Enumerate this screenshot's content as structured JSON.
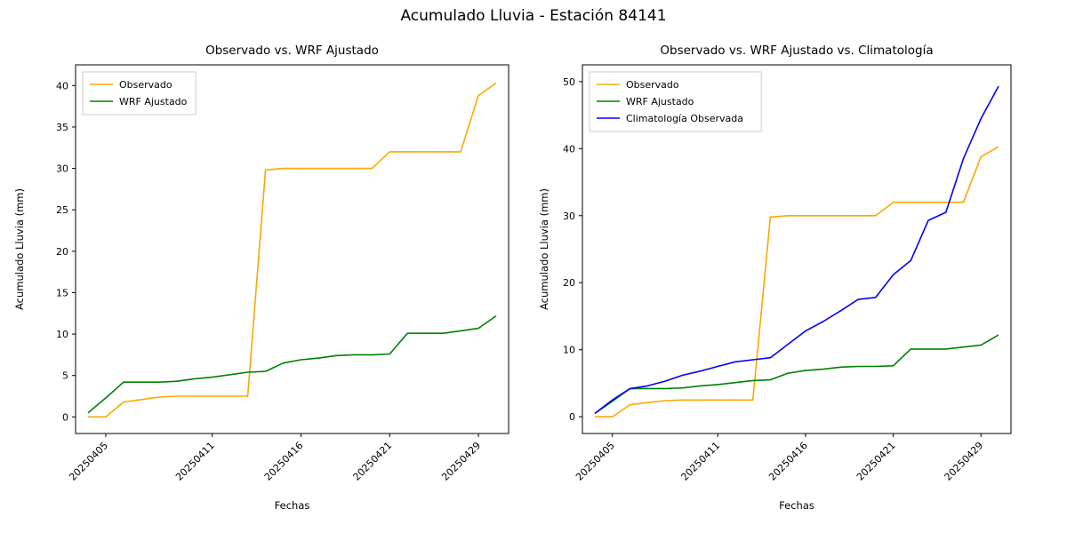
{
  "figure": {
    "title": "Acumulado Lluvia - Estación 84141"
  },
  "colors": {
    "observado": "#FFA500",
    "wrf": "#008000",
    "climatologia": "#0000FF",
    "spine": "#000000",
    "legend_border": "#cccccc"
  },
  "chart_data": [
    {
      "type": "line",
      "title": "Observado vs. WRF Ajustado",
      "xlabel": "Fechas",
      "ylabel": "Acumulado Lluvia (mm)",
      "x_categories": [
        "20250404",
        "20250405",
        "20250406",
        "20250407",
        "20250408",
        "20250409",
        "20250410",
        "20250411",
        "20250412",
        "20250413",
        "20250414",
        "20250415",
        "20250416",
        "20250417",
        "20250418",
        "20250419",
        "20250420",
        "20250421",
        "20250422",
        "20250423",
        "20250424",
        "20250428",
        "20250429",
        "20250430"
      ],
      "xtick_labels": [
        "20250405",
        "20250411",
        "20250416",
        "20250421",
        "20250429"
      ],
      "ytick_values": [
        0,
        5,
        10,
        15,
        20,
        25,
        30,
        35,
        40
      ],
      "ylim": [
        -2,
        42.5
      ],
      "grid": false,
      "legend_position": "upper left",
      "series": [
        {
          "name": "Observado",
          "color": "#FFA500",
          "values": [
            0,
            0,
            1.8,
            2.1,
            2.4,
            2.5,
            2.5,
            2.5,
            2.5,
            2.5,
            29.8,
            30,
            30,
            30,
            30,
            30,
            30,
            32,
            32,
            32,
            32,
            32,
            38.8,
            40.3
          ]
        },
        {
          "name": "WRF Ajustado",
          "color": "#008000",
          "values": [
            0.5,
            2.3,
            4.2,
            4.2,
            4.2,
            4.3,
            4.6,
            4.8,
            5.1,
            5.4,
            5.5,
            6.5,
            6.9,
            7.1,
            7.4,
            7.5,
            7.5,
            7.6,
            10.1,
            10.1,
            10.1,
            10.4,
            10.7,
            12.2
          ]
        }
      ]
    },
    {
      "type": "line",
      "title": "Observado vs. WRF Ajustado vs. Climatología",
      "xlabel": "Fechas",
      "ylabel": "Acumulado Lluvia (mm)",
      "x_categories": [
        "20250404",
        "20250405",
        "20250406",
        "20250407",
        "20250408",
        "20250409",
        "20250410",
        "20250411",
        "20250412",
        "20250413",
        "20250414",
        "20250415",
        "20250416",
        "20250417",
        "20250418",
        "20250419",
        "20250420",
        "20250421",
        "20250422",
        "20250423",
        "20250424",
        "20250428",
        "20250429",
        "20250430"
      ],
      "xtick_labels": [
        "20250405",
        "20250411",
        "20250416",
        "20250421",
        "20250429"
      ],
      "ytick_values": [
        0,
        10,
        20,
        30,
        40,
        50
      ],
      "ylim": [
        -2.5,
        52.5
      ],
      "grid": false,
      "legend_position": "upper left",
      "series": [
        {
          "name": "Observado",
          "color": "#FFA500",
          "values": [
            0,
            0,
            1.8,
            2.1,
            2.4,
            2.5,
            2.5,
            2.5,
            2.5,
            2.5,
            29.8,
            30,
            30,
            30,
            30,
            30,
            30,
            32,
            32,
            32,
            32,
            32,
            38.8,
            40.3
          ]
        },
        {
          "name": "WRF Ajustado",
          "color": "#008000",
          "values": [
            0.5,
            2.3,
            4.2,
            4.2,
            4.2,
            4.3,
            4.6,
            4.8,
            5.1,
            5.4,
            5.5,
            6.5,
            6.9,
            7.1,
            7.4,
            7.5,
            7.5,
            7.6,
            10.1,
            10.1,
            10.1,
            10.4,
            10.7,
            12.2
          ]
        },
        {
          "name": "Climatología Observada",
          "color": "#0000FF",
          "values": [
            0.5,
            2.5,
            4.2,
            4.6,
            5.3,
            6.2,
            6.8,
            7.5,
            8.2,
            8.5,
            8.8,
            10.8,
            12.8,
            14.2,
            15.8,
            17.5,
            17.8,
            21.2,
            23.3,
            29.3,
            30.5,
            38.5,
            44.5,
            49.3
          ]
        }
      ]
    }
  ]
}
